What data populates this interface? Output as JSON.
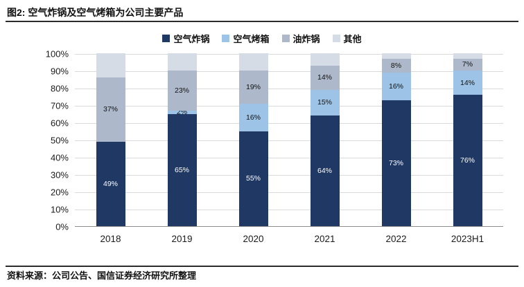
{
  "header": {
    "title": "图2: 空气炸锅及空气烤箱为公司主要产品"
  },
  "footer": {
    "source": "资料来源：公司公告、国信证券经济研究所整理"
  },
  "chart_data": {
    "type": "bar",
    "stacked": true,
    "percent_stacked": true,
    "title": "空气炸锅及空气烤箱为公司主要产品",
    "categories": [
      "2018",
      "2019",
      "2020",
      "2021",
      "2022",
      "2023H1"
    ],
    "series": [
      {
        "name": "空气炸锅",
        "key": "air-fryer",
        "color": "#1F3864",
        "label_color": "#ffffff",
        "values": [
          49,
          65,
          55,
          64,
          73,
          76
        ],
        "labels": [
          "49%",
          "65%",
          "55%",
          "64%",
          "73%",
          "76%"
        ]
      },
      {
        "name": "空气烤箱",
        "key": "air-oven",
        "color": "#9DC3E6",
        "label_color": "#111111",
        "values": [
          0,
          2,
          16,
          15,
          16,
          14
        ],
        "labels": [
          null,
          "2%",
          "16%",
          "15%",
          "16%",
          "14%"
        ]
      },
      {
        "name": "油炸锅",
        "key": "deep-fryer",
        "color": "#ADB9CA",
        "label_color": "#111111",
        "values": [
          37,
          23,
          19,
          14,
          8,
          7
        ],
        "labels": [
          "37%",
          "23%",
          "19%",
          "14%",
          "8%",
          "7%"
        ]
      },
      {
        "name": "其他",
        "key": "other",
        "color": "#D6DCE5",
        "label_color": "#111111",
        "values": [
          14,
          10,
          10,
          7,
          3,
          3
        ],
        "labels": [
          null,
          null,
          null,
          null,
          null,
          null
        ]
      }
    ],
    "y_ticks": [
      "0%",
      "10%",
      "20%",
      "30%",
      "40%",
      "50%",
      "60%",
      "70%",
      "80%",
      "90%",
      "100%"
    ],
    "ylim": [
      0,
      100
    ],
    "xlabel": "",
    "ylabel": "",
    "grid": true,
    "legend_position": "top"
  }
}
